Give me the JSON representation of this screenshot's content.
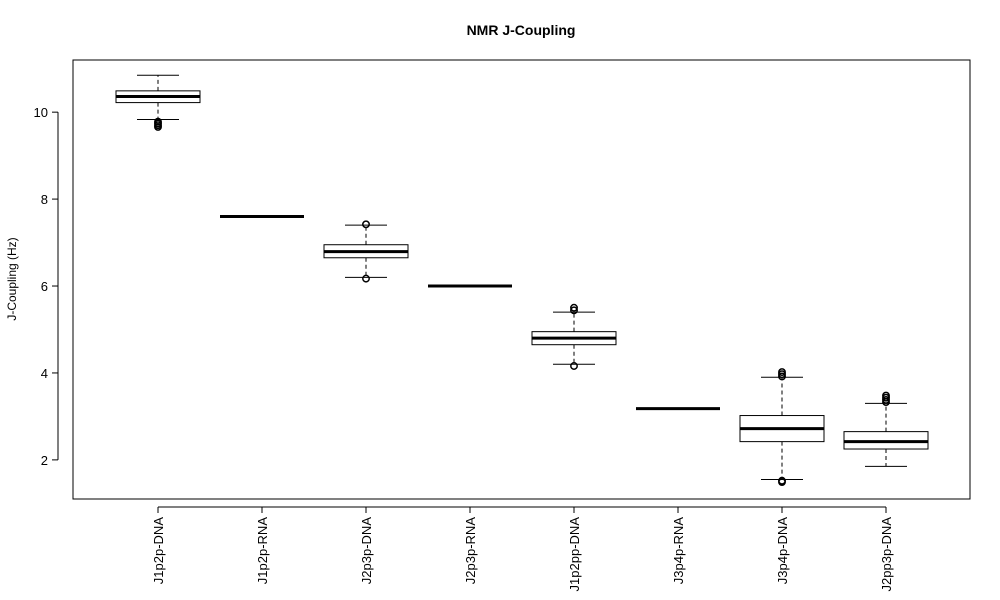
{
  "chart_data": {
    "type": "box",
    "title": "NMR J-Coupling",
    "ylabel": "J-Coupling (Hz)",
    "xlabel": "",
    "ylim": [
      1.1,
      11.2
    ],
    "yticks": [
      2,
      4,
      6,
      8,
      10
    ],
    "grid": false,
    "legend": "none",
    "boxes": [
      {
        "label": "J1p2p-DNA",
        "whisker_low": 9.83,
        "q1": 10.22,
        "median": 10.36,
        "q3": 10.49,
        "whisker_high": 10.85,
        "outliers": [
          9.78,
          9.74,
          9.7,
          9.66
        ]
      },
      {
        "label": "J1p2p-RNA",
        "whisker_low": 7.6,
        "q1": 7.6,
        "median": 7.6,
        "q3": 7.6,
        "whisker_high": 7.6,
        "outliers": []
      },
      {
        "label": "J2p3p-DNA",
        "whisker_low": 6.2,
        "q1": 6.65,
        "median": 6.79,
        "q3": 6.95,
        "whisker_high": 7.4,
        "outliers": [
          7.42,
          6.17
        ]
      },
      {
        "label": "J2p3p-RNA",
        "whisker_low": 6.0,
        "q1": 6.0,
        "median": 6.0,
        "q3": 6.0,
        "whisker_high": 6.0,
        "outliers": []
      },
      {
        "label": "J1p2pp-DNA",
        "whisker_low": 4.2,
        "q1": 4.65,
        "median": 4.8,
        "q3": 4.95,
        "whisker_high": 5.4,
        "outliers": [
          5.5,
          5.44,
          4.16
        ]
      },
      {
        "label": "J3p4p-RNA",
        "whisker_low": 3.18,
        "q1": 3.18,
        "median": 3.18,
        "q3": 3.18,
        "whisker_high": 3.18,
        "outliers": []
      },
      {
        "label": "J3p4p-DNA",
        "whisker_low": 1.55,
        "q1": 2.42,
        "median": 2.72,
        "q3": 3.02,
        "whisker_high": 3.9,
        "outliers": [
          4.02,
          3.97,
          3.92,
          1.52,
          1.49
        ]
      },
      {
        "label": "J2pp3p-DNA",
        "whisker_low": 1.85,
        "q1": 2.25,
        "median": 2.42,
        "q3": 2.65,
        "whisker_high": 3.3,
        "outliers": [
          3.48,
          3.43,
          3.38,
          3.33
        ]
      }
    ]
  },
  "colors": {
    "stroke": "#000000",
    "box_fill": "#ffffff",
    "background": "#ffffff"
  }
}
